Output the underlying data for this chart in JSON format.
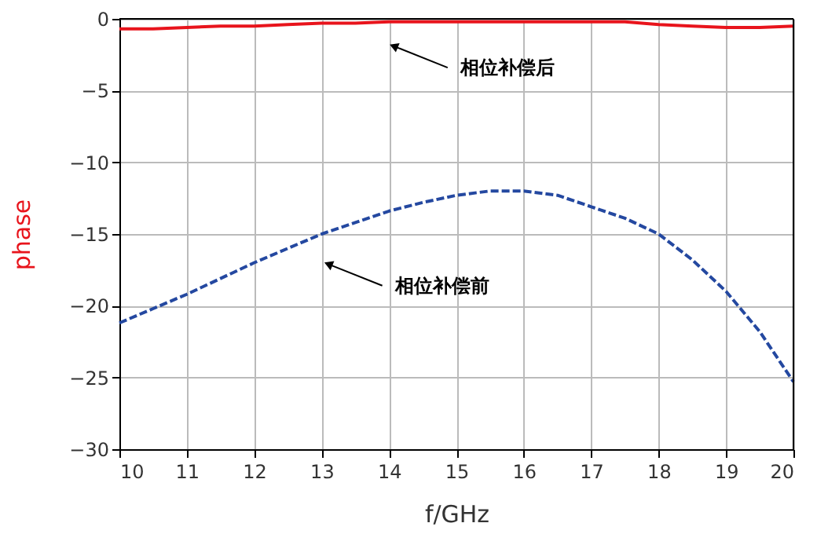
{
  "chart_data": {
    "type": "line",
    "xlabel": "f/GHz",
    "ylabel": "phase",
    "x": [
      10,
      10.5,
      11,
      11.5,
      12,
      12.5,
      13,
      13.5,
      14,
      14.5,
      15,
      15.5,
      16,
      16.5,
      17,
      17.5,
      18,
      18.5,
      19,
      19.5,
      20
    ],
    "series": [
      {
        "color": "#e8141c",
        "line_style": "solid",
        "values": [
          -0.7,
          -0.7,
          -0.6,
          -0.5,
          -0.5,
          -0.4,
          -0.3,
          -0.3,
          -0.2,
          -0.2,
          -0.2,
          -0.2,
          -0.2,
          -0.2,
          -0.2,
          -0.2,
          -0.4,
          -0.5,
          -0.6,
          -0.6,
          -0.5
        ]
      },
      {
        "color": "#2448a0",
        "line_style": "dashed",
        "values": [
          -21.2,
          -20.2,
          -19.2,
          -18.1,
          -17.0,
          -16.0,
          -15.0,
          -14.2,
          -13.4,
          -12.8,
          -12.3,
          -12.0,
          -12.0,
          -12.3,
          -13.1,
          -13.9,
          -15.0,
          -16.8,
          -19.0,
          -21.8,
          -25.3
        ]
      }
    ],
    "xlim": [
      10,
      20
    ],
    "xticks": [
      10,
      11,
      12,
      13,
      14,
      15,
      16,
      17,
      18,
      19,
      20
    ],
    "ylim": [
      -30,
      0
    ],
    "yticks": [
      -30,
      -25,
      -20,
      -15,
      -10,
      -5,
      0
    ],
    "grid": true,
    "marker": "none",
    "annotations": [
      {
        "text": "相位补偿后",
        "x": 14.07,
        "y": -1.9
      },
      {
        "text": "相位补偿前",
        "x": 13.1,
        "y": -17.1
      }
    ]
  }
}
